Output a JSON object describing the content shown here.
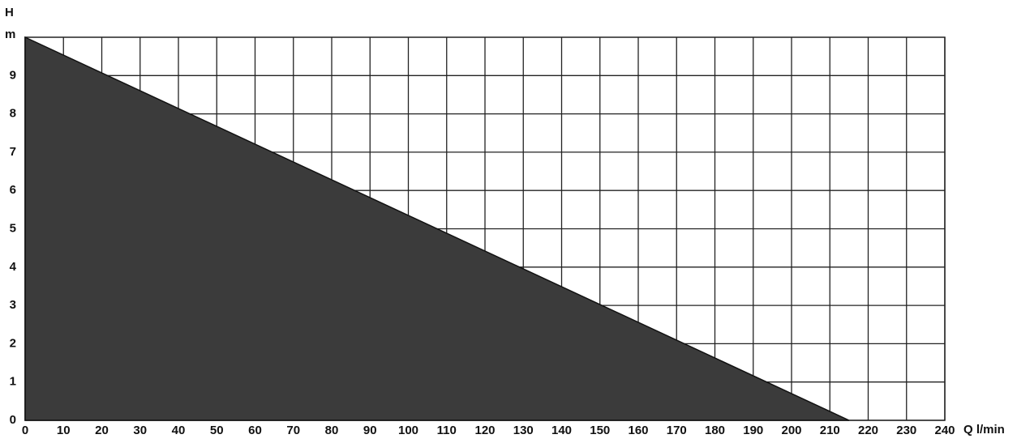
{
  "chart_data": {
    "type": "area",
    "y_label": "H",
    "y_unit": "m",
    "x_label": "Q l/min",
    "x": [
      0,
      215
    ],
    "values": [
      10,
      0
    ],
    "color": "#3b3b3b",
    "xlim": [
      0,
      240
    ],
    "ylim": [
      0,
      10
    ],
    "xticks": [
      0,
      10,
      20,
      30,
      40,
      50,
      60,
      70,
      80,
      90,
      100,
      110,
      120,
      130,
      140,
      150,
      160,
      170,
      180,
      190,
      200,
      210,
      220,
      230,
      240
    ],
    "yticks": [
      0,
      1,
      2,
      3,
      4,
      5,
      6,
      7,
      8,
      9
    ],
    "grid": true
  }
}
